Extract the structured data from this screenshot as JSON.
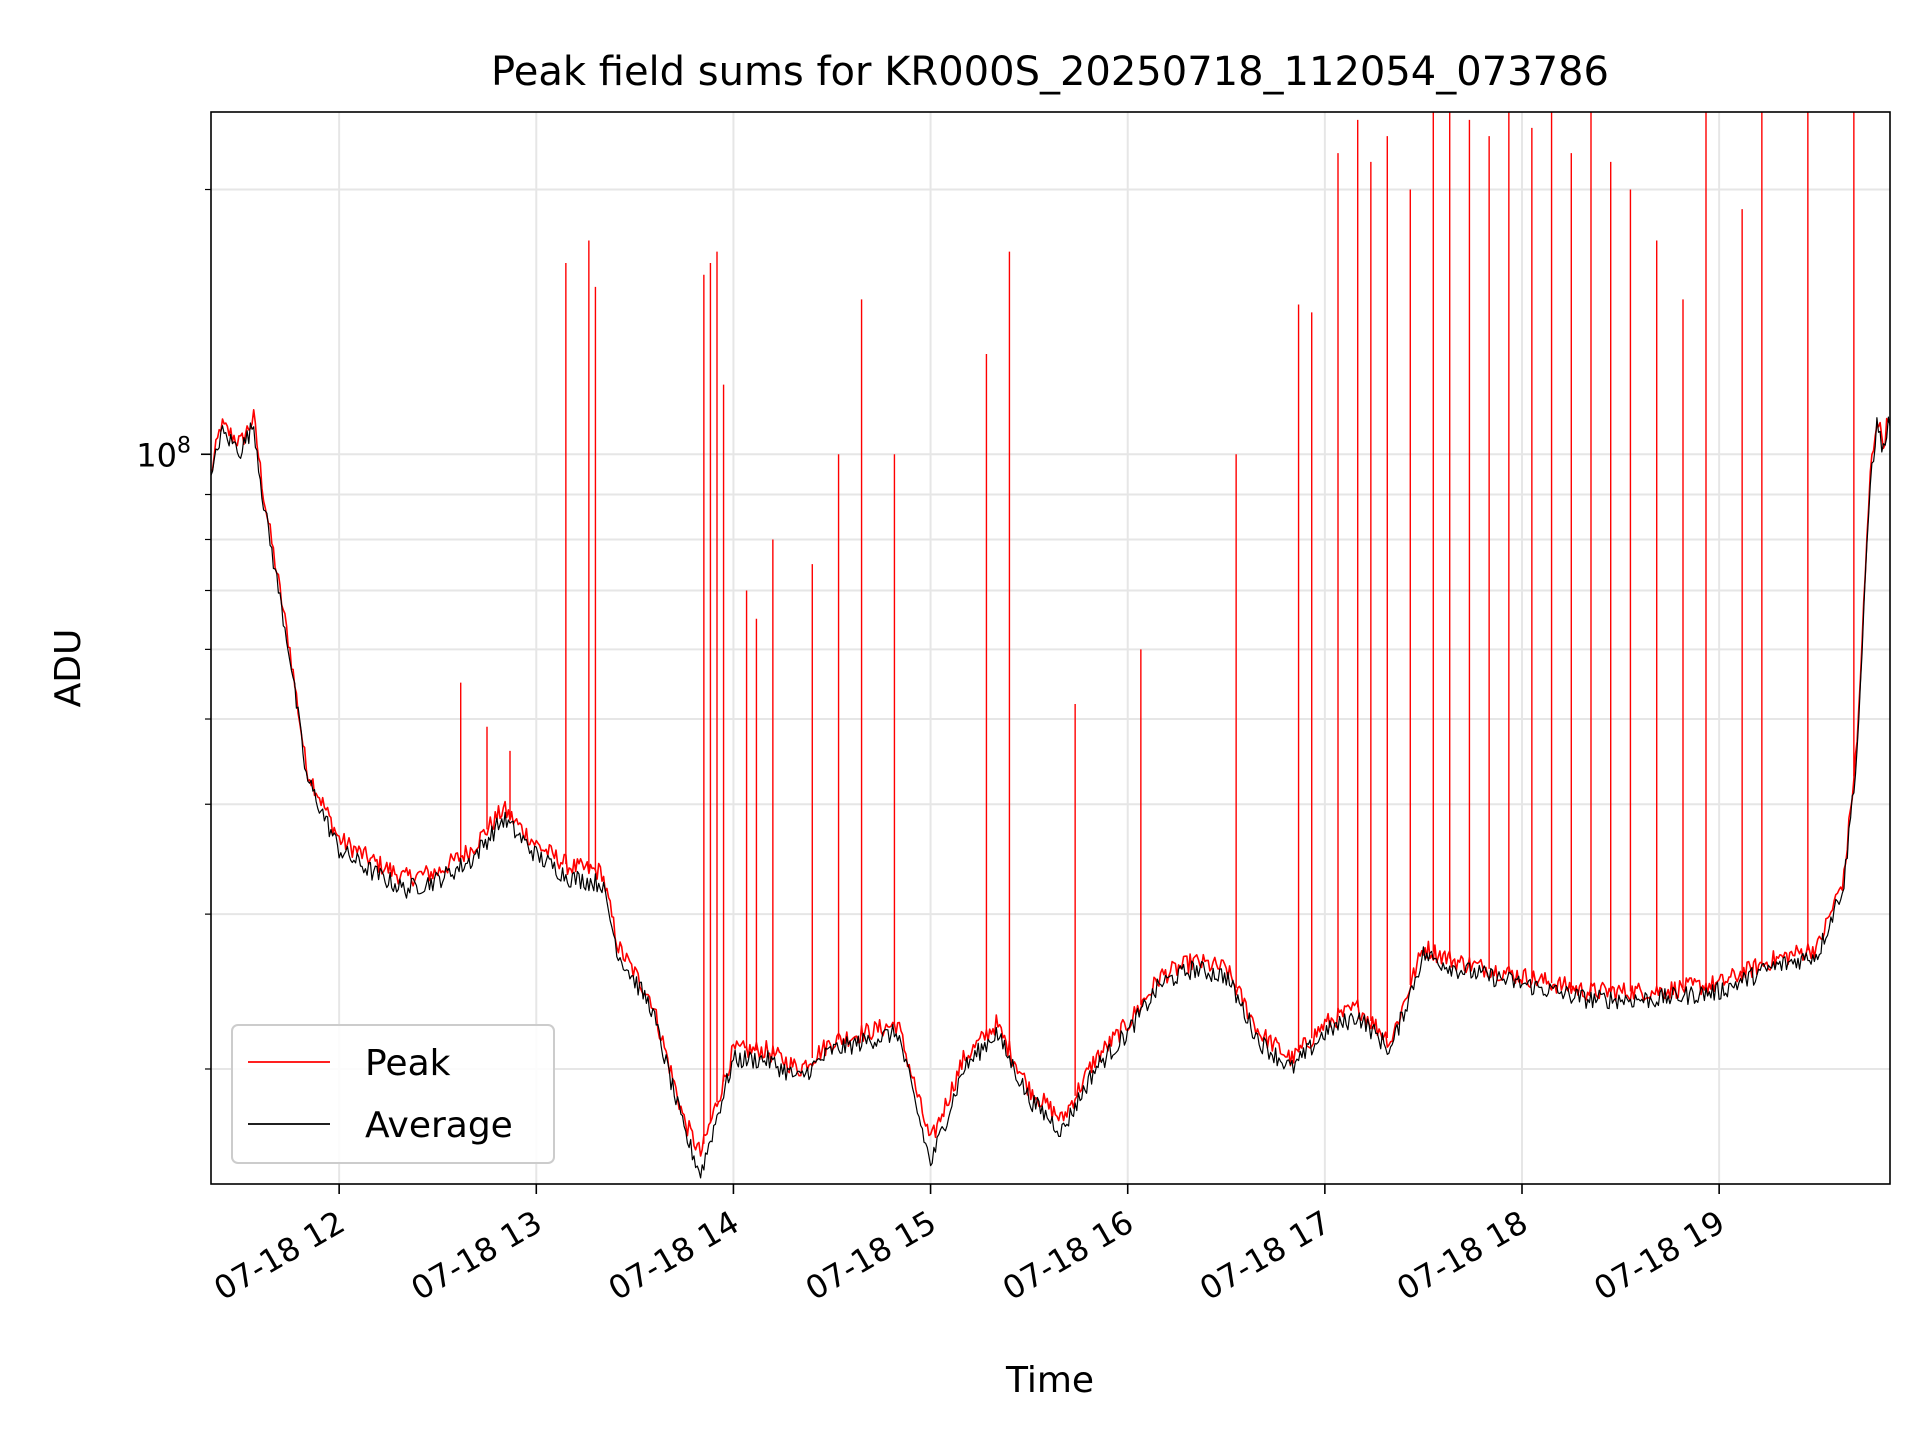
{
  "chart_data": {
    "type": "line",
    "title": "Peak field sums for KR000S_20250718_112054_073786",
    "xlabel": "Time",
    "ylabel": "ADU",
    "yscale": "log",
    "ylim": [
      14800000,
      245000000
    ],
    "x_range": [
      "07-18 11:21",
      "07-18 19:52"
    ],
    "x_ticks": [
      "07-18 12",
      "07-18 13",
      "07-18 14",
      "07-18 15",
      "07-18 16",
      "07-18 17",
      "07-18 18",
      "07-18 19"
    ],
    "y_major_ticks": [
      {
        "value": 100000000,
        "label_base": "10",
        "label_exp": "8"
      }
    ],
    "y_minor_ticks": [
      20000000,
      30000000,
      40000000,
      50000000,
      60000000,
      70000000,
      80000000,
      90000000,
      200000000
    ],
    "grid": true,
    "legend_position": "lower-left",
    "series": [
      {
        "name": "Peak",
        "color": "#ff0000",
        "baseline": [
          [
            "07-18 11:21",
            95000000
          ],
          [
            "07-18 11:24",
            108000000
          ],
          [
            "07-18 11:30",
            103000000
          ],
          [
            "07-18 11:34",
            110000000
          ],
          [
            "07-18 11:37",
            90000000
          ],
          [
            "07-18 11:45",
            60000000
          ],
          [
            "07-18 11:50",
            44000000
          ],
          [
            "07-18 12:00",
            36500000
          ],
          [
            "07-18 12:10",
            34500000
          ],
          [
            "07-18 12:20",
            33000000
          ],
          [
            "07-18 12:30",
            33500000
          ],
          [
            "07-18 12:40",
            35500000
          ],
          [
            "07-18 12:50",
            39500000
          ],
          [
            "07-18 13:00",
            36000000
          ],
          [
            "07-18 13:10",
            34000000
          ],
          [
            "07-18 13:20",
            33500000
          ],
          [
            "07-18 13:25",
            27500000
          ],
          [
            "07-18 13:35",
            24000000
          ],
          [
            "07-18 13:45",
            17500000
          ],
          [
            "07-18 13:50",
            16000000
          ],
          [
            "07-18 14:00",
            21000000
          ],
          [
            "07-18 14:10",
            21000000
          ],
          [
            "07-18 14:20",
            20000000
          ],
          [
            "07-18 14:30",
            21500000
          ],
          [
            "07-18 14:40",
            22000000
          ],
          [
            "07-18 14:50",
            22500000
          ],
          [
            "07-18 15:00",
            16500000
          ],
          [
            "07-18 15:10",
            20500000
          ],
          [
            "07-18 15:20",
            22500000
          ],
          [
            "07-18 15:30",
            19000000
          ],
          [
            "07-18 15:40",
            17500000
          ],
          [
            "07-18 15:50",
            20500000
          ],
          [
            "07-18 16:00",
            22500000
          ],
          [
            "07-18 16:10",
            25500000
          ],
          [
            "07-18 16:20",
            26500000
          ],
          [
            "07-18 16:30",
            26000000
          ],
          [
            "07-18 16:40",
            22000000
          ],
          [
            "07-18 16:50",
            20500000
          ],
          [
            "07-18 17:00",
            22500000
          ],
          [
            "07-18 17:10",
            23500000
          ],
          [
            "07-18 17:20",
            21500000
          ],
          [
            "07-18 17:30",
            27500000
          ],
          [
            "07-18 17:40",
            26500000
          ],
          [
            "07-18 18:00",
            25500000
          ],
          [
            "07-18 18:20",
            24500000
          ],
          [
            "07-18 18:40",
            24500000
          ],
          [
            "07-18 19:00",
            25000000
          ],
          [
            "07-18 19:15",
            26500000
          ],
          [
            "07-18 19:30",
            27500000
          ],
          [
            "07-18 19:38",
            33000000
          ],
          [
            "07-18 19:42",
            47000000
          ],
          [
            "07-18 19:46",
            95000000
          ],
          [
            "07-18 19:48",
            110000000
          ],
          [
            "07-18 19:50",
            103000000
          ],
          [
            "07-18 19:52",
            112000000
          ]
        ],
        "spikes": [
          [
            "07-18 12:37",
            55000000
          ],
          [
            "07-18 12:45",
            49000000
          ],
          [
            "07-18 12:52",
            46000000
          ],
          [
            "07-18 13:09",
            165000000
          ],
          [
            "07-18 13:16",
            175000000
          ],
          [
            "07-18 13:18",
            155000000
          ],
          [
            "07-18 13:51",
            160000000
          ],
          [
            "07-18 13:53",
            165000000
          ],
          [
            "07-18 13:55",
            170000000
          ],
          [
            "07-18 13:57",
            120000000
          ],
          [
            "07-18 14:04",
            70000000
          ],
          [
            "07-18 14:07",
            65000000
          ],
          [
            "07-18 14:12",
            80000000
          ],
          [
            "07-18 14:24",
            75000000
          ],
          [
            "07-18 14:32",
            100000000
          ],
          [
            "07-18 14:39",
            150000000
          ],
          [
            "07-18 14:49",
            100000000
          ],
          [
            "07-18 15:17",
            130000000
          ],
          [
            "07-18 15:24",
            170000000
          ],
          [
            "07-18 15:44",
            52000000
          ],
          [
            "07-18 16:04",
            60000000
          ],
          [
            "07-18 16:33",
            100000000
          ],
          [
            "07-18 16:52",
            148000000
          ],
          [
            "07-18 16:56",
            145000000
          ],
          [
            "07-18 17:04",
            220000000
          ],
          [
            "07-18 17:10",
            240000000
          ],
          [
            "07-18 17:14",
            215000000
          ],
          [
            "07-18 17:19",
            230000000
          ],
          [
            "07-18 17:26",
            200000000
          ],
          [
            "07-18 17:33",
            245000000
          ],
          [
            "07-18 17:38",
            245000000
          ],
          [
            "07-18 17:44",
            240000000
          ],
          [
            "07-18 17:50",
            230000000
          ],
          [
            "07-18 17:56",
            245000000
          ],
          [
            "07-18 18:03",
            235000000
          ],
          [
            "07-18 18:09",
            245000000
          ],
          [
            "07-18 18:15",
            220000000
          ],
          [
            "07-18 18:21",
            245000000
          ],
          [
            "07-18 18:27",
            215000000
          ],
          [
            "07-18 18:33",
            200000000
          ],
          [
            "07-18 18:41",
            175000000
          ],
          [
            "07-18 18:49",
            150000000
          ],
          [
            "07-18 18:56",
            245000000
          ],
          [
            "07-18 19:07",
            190000000
          ],
          [
            "07-18 19:13",
            245000000
          ],
          [
            "07-18 19:27",
            245000000
          ],
          [
            "07-18 19:41",
            245000000
          ]
        ]
      },
      {
        "name": "Average",
        "color": "#000000",
        "baseline": [
          [
            "07-18 11:21",
            93000000
          ],
          [
            "07-18 11:24",
            106000000
          ],
          [
            "07-18 11:30",
            101000000
          ],
          [
            "07-18 11:34",
            108000000
          ],
          [
            "07-18 11:37",
            88000000
          ],
          [
            "07-18 11:45",
            59000000
          ],
          [
            "07-18 11:50",
            43000000
          ],
          [
            "07-18 12:00",
            35500000
          ],
          [
            "07-18 12:10",
            33500000
          ],
          [
            "07-18 12:20",
            32000000
          ],
          [
            "07-18 12:30",
            32800000
          ],
          [
            "07-18 12:40",
            34500000
          ],
          [
            "07-18 12:50",
            38500000
          ],
          [
            "07-18 13:00",
            35000000
          ],
          [
            "07-18 13:10",
            33000000
          ],
          [
            "07-18 13:20",
            32500000
          ],
          [
            "07-18 13:25",
            27000000
          ],
          [
            "07-18 13:35",
            23500000
          ],
          [
            "07-18 13:45",
            17000000
          ],
          [
            "07-18 13:50",
            15200000
          ],
          [
            "07-18 14:00",
            20500000
          ],
          [
            "07-18 14:10",
            20500000
          ],
          [
            "07-18 14:20",
            19500000
          ],
          [
            "07-18 14:30",
            21000000
          ],
          [
            "07-18 14:40",
            21500000
          ],
          [
            "07-18 14:50",
            22000000
          ],
          [
            "07-18 15:00",
            15600000
          ],
          [
            "07-18 15:10",
            20000000
          ],
          [
            "07-18 15:20",
            22000000
          ],
          [
            "07-18 15:30",
            18500000
          ],
          [
            "07-18 15:40",
            17000000
          ],
          [
            "07-18 15:50",
            20000000
          ],
          [
            "07-18 16:00",
            22000000
          ],
          [
            "07-18 16:10",
            25000000
          ],
          [
            "07-18 16:20",
            26000000
          ],
          [
            "07-18 16:30",
            25500000
          ],
          [
            "07-18 16:40",
            21500000
          ],
          [
            "07-18 16:50",
            20000000
          ],
          [
            "07-18 17:00",
            22000000
          ],
          [
            "07-18 17:10",
            23000000
          ],
          [
            "07-18 17:20",
            21000000
          ],
          [
            "07-18 17:30",
            27000000
          ],
          [
            "07-18 17:40",
            26000000
          ],
          [
            "07-18 18:00",
            25000000
          ],
          [
            "07-18 18:20",
            24000000
          ],
          [
            "07-18 18:40",
            24000000
          ],
          [
            "07-18 19:00",
            24500000
          ],
          [
            "07-18 19:15",
            26000000
          ],
          [
            "07-18 19:30",
            27000000
          ],
          [
            "07-18 19:38",
            32500000
          ],
          [
            "07-18 19:42",
            46000000
          ],
          [
            "07-18 19:46",
            93000000
          ],
          [
            "07-18 19:48",
            108000000
          ],
          [
            "07-18 19:50",
            101000000
          ],
          [
            "07-18 19:52",
            110000000
          ]
        ]
      }
    ]
  }
}
